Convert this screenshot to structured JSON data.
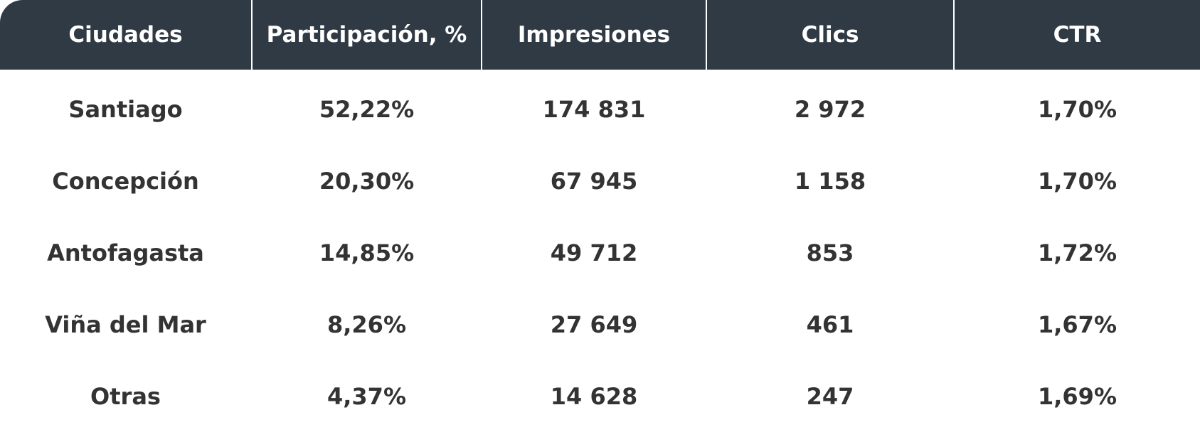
{
  "table": {
    "header": [
      "Ciudades",
      "Participación, %",
      "Impresiones",
      "Clics",
      "CTR"
    ],
    "rows": [
      [
        "Santiago",
        "52,22%",
        "174 831",
        "2 972",
        "1,70%"
      ],
      [
        "Concepción",
        "20,30%",
        "67 945",
        "1 158",
        "1,70%"
      ],
      [
        "Antofagasta",
        "14,85%",
        "49 712",
        "853",
        "1,72%"
      ],
      [
        "Viña del Mar",
        "8,26%",
        "27 649",
        "461",
        "1,67%"
      ],
      [
        "Otras",
        "4,37%",
        "14 628",
        "247",
        "1,69%"
      ]
    ]
  }
}
